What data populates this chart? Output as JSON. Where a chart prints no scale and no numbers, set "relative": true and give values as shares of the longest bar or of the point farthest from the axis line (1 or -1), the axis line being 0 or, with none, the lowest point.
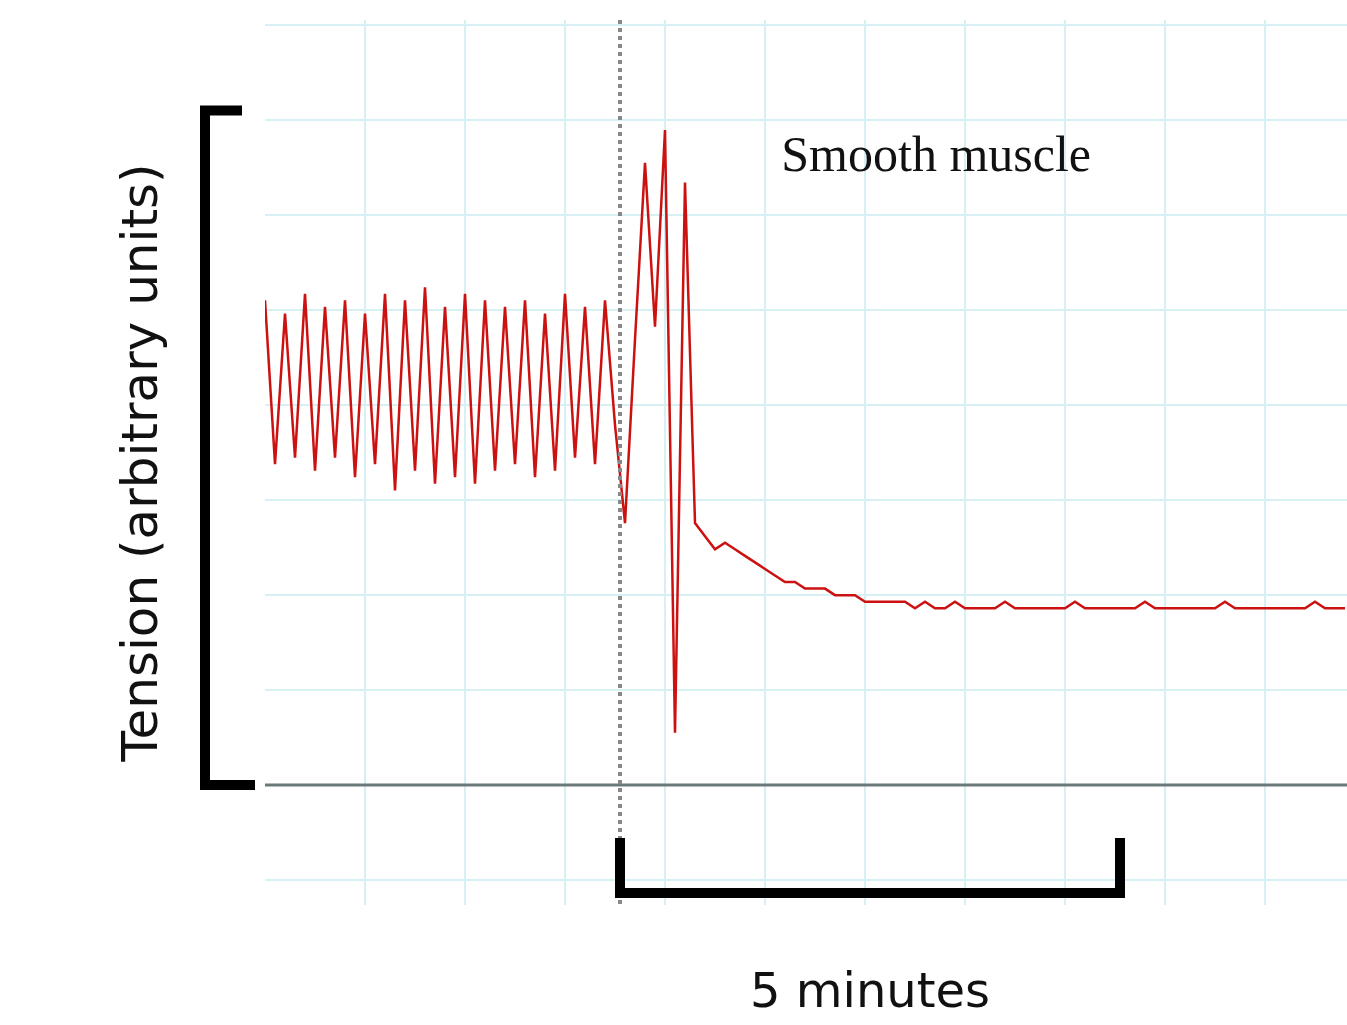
{
  "chart_data": {
    "type": "line",
    "title": "Smooth muscle",
    "ylabel": "Tension (arbitrary units)",
    "relative": true,
    "grid": true,
    "marker": "none",
    "line_style": "solid",
    "categories": [
      null,
      null,
      null,
      null,
      null,
      null,
      null,
      null,
      null,
      null,
      null,
      null,
      null,
      null,
      null,
      null,
      null,
      null,
      null,
      null,
      null,
      null,
      null,
      null,
      null,
      null,
      null,
      null,
      null,
      null,
      null,
      null,
      null,
      null,
      null,
      null,
      null,
      null,
      null,
      null,
      null,
      null,
      null,
      null,
      null,
      null,
      null,
      null,
      null,
      null,
      null,
      null,
      null,
      null,
      null,
      null,
      null,
      null,
      null,
      null,
      null,
      null,
      null,
      null,
      null,
      null,
      null,
      null,
      null,
      null,
      null,
      null,
      null,
      null,
      null,
      null,
      null,
      null,
      null,
      null,
      null,
      null,
      null,
      null,
      null,
      null,
      null,
      null,
      null,
      null,
      null,
      null,
      null,
      null,
      null,
      null,
      null,
      null,
      null,
      null,
      null,
      null,
      null,
      null,
      null,
      null,
      null,
      null,
      null
    ],
    "series": [
      {
        "color": "#cc1111",
        "values": [
          0.74,
          0.49,
          0.72,
          0.5,
          0.75,
          0.48,
          0.73,
          0.5,
          0.74,
          0.47,
          0.72,
          0.49,
          0.75,
          0.45,
          0.74,
          0.48,
          0.76,
          0.46,
          0.73,
          0.47,
          0.75,
          0.46,
          0.74,
          0.48,
          0.73,
          0.49,
          0.74,
          0.47,
          0.72,
          0.48,
          0.75,
          0.5,
          0.73,
          0.49,
          0.74,
          0.55,
          0.4,
          0.68,
          0.95,
          0.7,
          1.0,
          0.08,
          0.92,
          0.4,
          0.38,
          0.36,
          0.37,
          0.36,
          0.35,
          0.34,
          0.33,
          0.32,
          0.31,
          0.31,
          0.3,
          0.3,
          0.3,
          0.29,
          0.29,
          0.29,
          0.28,
          0.28,
          0.28,
          0.28,
          0.28,
          0.27,
          0.28,
          0.27,
          0.27,
          0.28,
          0.27,
          0.27,
          0.27,
          0.27,
          0.28,
          0.27,
          0.27,
          0.27,
          0.27,
          0.27,
          0.27,
          0.28,
          0.27,
          0.27,
          0.27,
          0.27,
          0.27,
          0.27,
          0.28,
          0.27,
          0.27,
          0.27,
          0.27,
          0.27,
          0.27,
          0.27,
          0.28,
          0.27,
          0.27,
          0.27,
          0.27,
          0.27,
          0.27,
          0.27,
          0.27,
          0.28,
          0.27,
          0.27,
          0.27
        ]
      }
    ],
    "annotations": [
      "5 minutes"
    ]
  }
}
